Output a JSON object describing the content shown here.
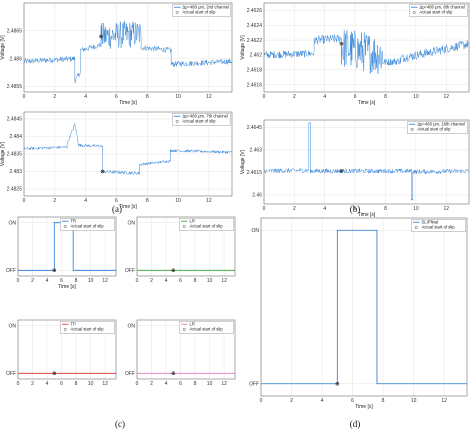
{
  "panel_labels": [
    "(a)",
    "(b)",
    "(c)",
    "(d)"
  ],
  "chart_data": [
    {
      "id": "a1",
      "type": "line",
      "xlabel": "Time [s]",
      "ylabel": "Voltage [V]",
      "xlim": [
        0,
        13.5
      ],
      "ylim": [
        2.4854,
        2.487
      ],
      "xticks": [
        0,
        2,
        4,
        6,
        8,
        10,
        12
      ],
      "yticks": [
        {
          "v": 2.4855,
          "label": "2.4855"
        },
        {
          "v": 2.486,
          "label": "2.486"
        },
        {
          "v": 2.4865,
          "label": "2.4865"
        }
      ],
      "legend": {
        "placement": "top-right",
        "entries": [
          "Δp=480 μm, 2nd channel",
          "Actual start of slip"
        ]
      },
      "series": [
        {
          "color": "#1f77d4",
          "segments": [
            {
              "x0": 0,
              "x1": 3.3,
              "y0": 2.48595,
              "y1": 2.486,
              "noise": 5e-05
            },
            {
              "x0": 3.3,
              "x1": 3.65,
              "y0": 2.4856,
              "y1": 2.48575,
              "noise": 5e-05
            },
            {
              "x0": 3.65,
              "x1": 5.0,
              "y0": 2.48615,
              "y1": 2.48625,
              "noise": 5e-05
            },
            {
              "x0": 5.0,
              "x1": 7.6,
              "y0": 2.4864,
              "y1": 2.48645,
              "noise": 0.00025
            },
            {
              "x0": 7.6,
              "x1": 9.55,
              "y0": 2.4862,
              "y1": 2.48615,
              "noise": 5e-05
            },
            {
              "x0": 9.55,
              "x1": 13.5,
              "y0": 2.4859,
              "y1": 2.48595,
              "noise": 5e-05
            }
          ]
        }
      ],
      "marker": {
        "x": 5.0,
        "y": 2.4864
      }
    },
    {
      "id": "b1",
      "type": "line",
      "xlabel": "Time [s]",
      "ylabel": "Voltage [V]",
      "xlim": [
        0,
        13.5
      ],
      "ylim": [
        2.4615,
        2.4627
      ],
      "xticks": [
        0,
        2,
        4,
        6,
        8,
        10,
        12
      ],
      "yticks": [
        {
          "v": 2.4616,
          "label": "2.4616"
        },
        {
          "v": 2.4618,
          "label": "2.4618"
        },
        {
          "v": 2.462,
          "label": "2.462"
        },
        {
          "v": 2.4622,
          "label": "2.4622"
        },
        {
          "v": 2.4624,
          "label": "2.4624"
        },
        {
          "v": 2.4626,
          "label": "2.4626"
        }
      ],
      "legend": {
        "placement": "top-right",
        "entries": [
          "Δp=480 μm, 8th channel",
          "Actual start of slip"
        ]
      },
      "series": [
        {
          "color": "#1f77d4",
          "segments": [
            {
              "x0": 0,
              "x1": 3.3,
              "y0": 2.462,
              "y1": 2.46202,
              "noise": 5e-05
            },
            {
              "x0": 3.3,
              "x1": 5.1,
              "y0": 2.4622,
              "y1": 2.46222,
              "noise": 6e-05
            },
            {
              "x0": 5.1,
              "x1": 7.8,
              "y0": 2.4621,
              "y1": 2.462,
              "noise": 0.00028
            },
            {
              "x0": 7.8,
              "x1": 9.0,
              "y0": 2.4619,
              "y1": 2.46192,
              "noise": 5e-05
            },
            {
              "x0": 9.0,
              "x1": 13.5,
              "y0": 2.46195,
              "y1": 2.46215,
              "noise": 6e-05
            }
          ]
        }
      ],
      "marker": {
        "x": 5.1,
        "y": 2.46215
      }
    },
    {
      "id": "a2",
      "type": "line",
      "xlabel": "Time [s]",
      "ylabel": "Voltage [V]",
      "xlim": [
        0,
        13.5
      ],
      "ylim": [
        2.4823,
        2.4847
      ],
      "xticks": [
        0,
        2,
        4,
        6,
        8,
        10,
        12
      ],
      "yticks": [
        {
          "v": 2.4825,
          "label": "2.4825"
        },
        {
          "v": 2.483,
          "label": "2.483"
        },
        {
          "v": 2.4835,
          "label": "2.4835"
        },
        {
          "v": 2.484,
          "label": "2.484"
        },
        {
          "v": 2.4845,
          "label": "2.4845"
        }
      ],
      "legend": {
        "placement": "top-right",
        "entries": [
          "Δp=480 μm, 7th channel",
          "Actual start of slip"
        ]
      },
      "series": [
        {
          "color": "#1f77d4",
          "segments": [
            {
              "x0": 0,
              "x1": 2.8,
              "y0": 2.48365,
              "y1": 2.4837,
              "noise": 4e-05
            },
            {
              "x0": 2.8,
              "x1": 3.3,
              "y0": 2.4838,
              "y1": 2.48435,
              "noise": 4e-05
            },
            {
              "x0": 3.3,
              "x1": 3.55,
              "y0": 2.48435,
              "y1": 2.48375,
              "noise": 4e-05
            },
            {
              "x0": 3.55,
              "x1": 5.1,
              "y0": 2.48375,
              "y1": 2.48372,
              "noise": 4e-05
            },
            {
              "x0": 5.1,
              "x1": 7.5,
              "y0": 2.483,
              "y1": 2.48295,
              "noise": 5e-05
            },
            {
              "x0": 7.5,
              "x1": 9.5,
              "y0": 2.4832,
              "y1": 2.4833,
              "noise": 4e-05
            },
            {
              "x0": 9.5,
              "x1": 13.5,
              "y0": 2.4836,
              "y1": 2.48355,
              "noise": 4e-05
            }
          ]
        }
      ],
      "marker": {
        "x": 5.1,
        "y": 2.483
      }
    },
    {
      "id": "b2",
      "type": "line",
      "xlabel": "Time [s]",
      "ylabel": "Voltage [V]",
      "xlim": [
        0,
        13.5
      ],
      "ylim": [
        2.4594,
        2.465
      ],
      "xticks": [
        0,
        2,
        4,
        6,
        8,
        10,
        12
      ],
      "yticks": [
        {
          "v": 2.46,
          "label": "2.46"
        },
        {
          "v": 2.4615,
          "label": "2.4615"
        },
        {
          "v": 2.463,
          "label": "2.463"
        },
        {
          "v": 2.4645,
          "label": "2.4645"
        }
      ],
      "legend": {
        "placement": "top-right",
        "entries": [
          "Δp=480 μm, 16th channel",
          "Actual start of slip"
        ]
      },
      "series": [
        {
          "color": "#1f77d4",
          "segments": [
            {
              "x0": 0,
              "x1": 2.95,
              "y0": 2.4616,
              "y1": 2.46165,
              "noise": 0.00015
            },
            {
              "x0": 2.95,
              "x1": 3.05,
              "y0": 2.4648,
              "y1": 2.4648,
              "noise": 5e-05
            },
            {
              "x0": 3.05,
              "x1": 9.7,
              "y0": 2.4616,
              "y1": 2.4616,
              "noise": 0.00015
            },
            {
              "x0": 9.7,
              "x1": 9.8,
              "y0": 2.4597,
              "y1": 2.4597,
              "noise": 5e-05
            },
            {
              "x0": 9.8,
              "x1": 13.5,
              "y0": 2.46155,
              "y1": 2.4616,
              "noise": 0.00015
            }
          ]
        }
      ],
      "marker": {
        "x": 5.1,
        "y": 2.4616
      }
    },
    {
      "id": "c1",
      "type": "line",
      "xlabel": "Time [s]",
      "ylabel": "",
      "xlim": [
        0,
        13.5
      ],
      "ylim": [
        -0.12,
        1.12
      ],
      "xticks": [
        0,
        2,
        4,
        6,
        8,
        10,
        12
      ],
      "yticks": [
        {
          "v": 0,
          "label": "OFF"
        },
        {
          "v": 1,
          "label": "ON"
        }
      ],
      "legend": {
        "placement": "top-right",
        "entries": [
          "TR",
          "Actual start of slip"
        ]
      },
      "series": [
        {
          "color": "#1f77d4",
          "points": [
            [
              0,
              0
            ],
            [
              5.0,
              0
            ],
            [
              5.0,
              1
            ],
            [
              7.6,
              1
            ],
            [
              7.6,
              0
            ],
            [
              13.5,
              0
            ]
          ]
        }
      ],
      "marker": {
        "x": 5.0,
        "y": 0
      }
    },
    {
      "id": "c2",
      "type": "line",
      "xlabel": "",
      "ylabel": "",
      "xlim": [
        0,
        13.5
      ],
      "ylim": [
        -0.12,
        1.12
      ],
      "xticks": [
        0,
        2,
        4,
        6,
        8,
        10,
        12
      ],
      "yticks": [
        {
          "v": 0,
          "label": "OFF"
        },
        {
          "v": 1,
          "label": "ON"
        }
      ],
      "legend": {
        "placement": "top-right",
        "entries": [
          "LR",
          "Actual start of slip"
        ]
      },
      "series": [
        {
          "color": "#2ca02c",
          "points": [
            [
              0,
              0
            ],
            [
              13.5,
              0
            ]
          ]
        }
      ],
      "marker": {
        "x": 5.0,
        "y": 0
      }
    },
    {
      "id": "c3",
      "type": "line",
      "xlabel": "",
      "ylabel": "",
      "xlim": [
        0,
        13.5
      ],
      "ylim": [
        -0.12,
        1.12
      ],
      "xticks": [
        0,
        2,
        4,
        6,
        8,
        10,
        12
      ],
      "yticks": [
        {
          "v": 0,
          "label": "OFF"
        },
        {
          "v": 1,
          "label": "ON"
        }
      ],
      "legend": {
        "placement": "top-right",
        "entries": [
          "TP",
          "Actual start of slip"
        ]
      },
      "series": [
        {
          "color": "#d62728",
          "points": [
            [
              0,
              0
            ],
            [
              13.5,
              0
            ]
          ]
        }
      ],
      "marker": {
        "x": 5.0,
        "y": 0
      }
    },
    {
      "id": "c4",
      "type": "line",
      "xlabel": "",
      "ylabel": "",
      "xlim": [
        0,
        13.5
      ],
      "ylim": [
        -0.12,
        1.12
      ],
      "xticks": [
        0,
        2,
        4,
        6,
        8,
        10,
        12
      ],
      "yticks": [
        {
          "v": 0,
          "label": "OFF"
        },
        {
          "v": 1,
          "label": "ON"
        }
      ],
      "legend": {
        "placement": "top-right",
        "entries": [
          "LR",
          "Actual start of slip"
        ]
      },
      "series": [
        {
          "color": "#e377c2",
          "points": [
            [
              0,
              0
            ],
            [
              13.5,
              0
            ]
          ]
        }
      ],
      "marker": {
        "x": 5.0,
        "y": 0
      }
    },
    {
      "id": "d",
      "type": "line",
      "xlabel": "Time [s]",
      "ylabel": "",
      "xlim": [
        0,
        13.5
      ],
      "ylim": [
        -0.08,
        1.08
      ],
      "xticks": [
        0,
        2,
        4,
        6,
        8,
        10,
        12
      ],
      "yticks": [
        {
          "v": 0,
          "label": "OFF"
        },
        {
          "v": 1,
          "label": "ON"
        }
      ],
      "legend": {
        "placement": "top-right",
        "entries": [
          "SLIPfinal",
          "Actual start of slip"
        ]
      },
      "series": [
        {
          "color": "#1f77d4",
          "points": [
            [
              0,
              0
            ],
            [
              5.0,
              0
            ],
            [
              5.0,
              1
            ],
            [
              7.6,
              1
            ],
            [
              7.6,
              0
            ],
            [
              13.5,
              0
            ]
          ]
        }
      ],
      "marker": {
        "x": 5.0,
        "y": 0
      }
    }
  ]
}
